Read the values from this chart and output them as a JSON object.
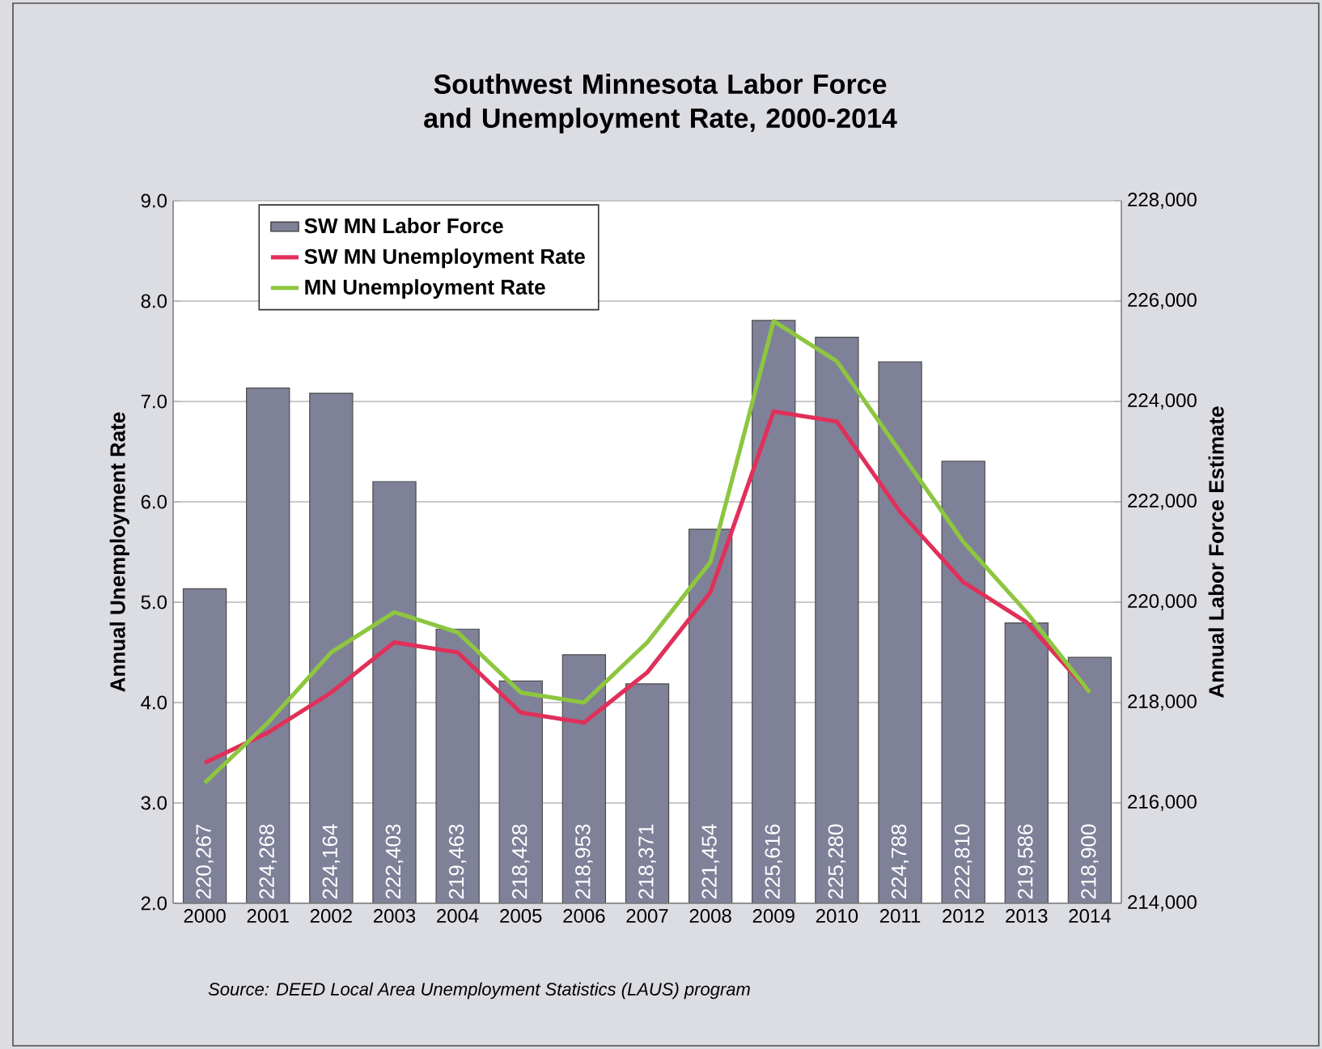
{
  "chart_data": {
    "type": "bar",
    "title": "Southwest Minnesota Labor Force and Unemployment Rate, 2000-2014",
    "ylabel": "Annual Unemployment Rate",
    "y2label": "Annual Labor Force Estimate",
    "annotations": [
      "Source: DEED Local Area Unemployment Statistics (LAUS) program"
    ],
    "categories": [
      "2000",
      "2001",
      "2002",
      "2003",
      "2004",
      "2005",
      "2006",
      "2007",
      "2008",
      "2009",
      "2010",
      "2011",
      "2012",
      "2013",
      "2014"
    ],
    "series": [
      {
        "name": "SW MN Labor Force",
        "axis": "y2",
        "color": "#7f8199",
        "values": [
          220267,
          224268,
          224164,
          222403,
          219463,
          218428,
          218953,
          218371,
          221454,
          225616,
          225280,
          224788,
          222810,
          219586,
          218900
        ],
        "value_labels": [
          "220,267",
          "224,268",
          "224,164",
          "222,403",
          "219,463",
          "218,428",
          "218,953",
          "218,371",
          "221,454",
          "225,616",
          "225,280",
          "224,788",
          "222,810",
          "219,586",
          "218,900"
        ]
      },
      {
        "name": "SW MN Unemployment Rate",
        "type": "line",
        "color": "#e0305a",
        "values": [
          3.4,
          3.7,
          4.1,
          4.6,
          4.5,
          3.9,
          3.8,
          4.3,
          5.1,
          6.9,
          6.8,
          5.9,
          5.2,
          4.8,
          4.1
        ]
      },
      {
        "name": "MN Unemployment Rate",
        "type": "line",
        "color": "#8dc63f",
        "values": [
          3.2,
          3.8,
          4.5,
          4.9,
          4.7,
          4.1,
          4.0,
          4.6,
          5.4,
          7.8,
          7.4,
          6.5,
          5.6,
          4.9,
          4.1
        ]
      }
    ],
    "ylim": [
      2,
      9
    ],
    "yticks": [
      {
        "value": 2,
        "label": "2.0"
      },
      {
        "value": 3,
        "label": "3.0"
      },
      {
        "value": 4,
        "label": "4.0"
      },
      {
        "value": 5,
        "label": "5.0"
      },
      {
        "value": 6,
        "label": "6.0"
      },
      {
        "value": 7,
        "label": "7.0"
      },
      {
        "value": 8,
        "label": "8.0"
      },
      {
        "value": 9,
        "label": "9.0"
      }
    ],
    "y2lim": [
      214000,
      228000
    ],
    "y2ticks": [
      {
        "value": 214000,
        "label": "214,000"
      },
      {
        "value": 216000,
        "label": "216,000"
      },
      {
        "value": 218000,
        "label": "218,000"
      },
      {
        "value": 220000,
        "label": "220,000"
      },
      {
        "value": 222000,
        "label": "222,000"
      },
      {
        "value": 224000,
        "label": "224,000"
      },
      {
        "value": 226000,
        "label": "226,000"
      },
      {
        "value": 228000,
        "label": "228,000"
      }
    ],
    "grid": "y",
    "legend": "top left",
    "marker": "none",
    "line_style": "solid"
  }
}
